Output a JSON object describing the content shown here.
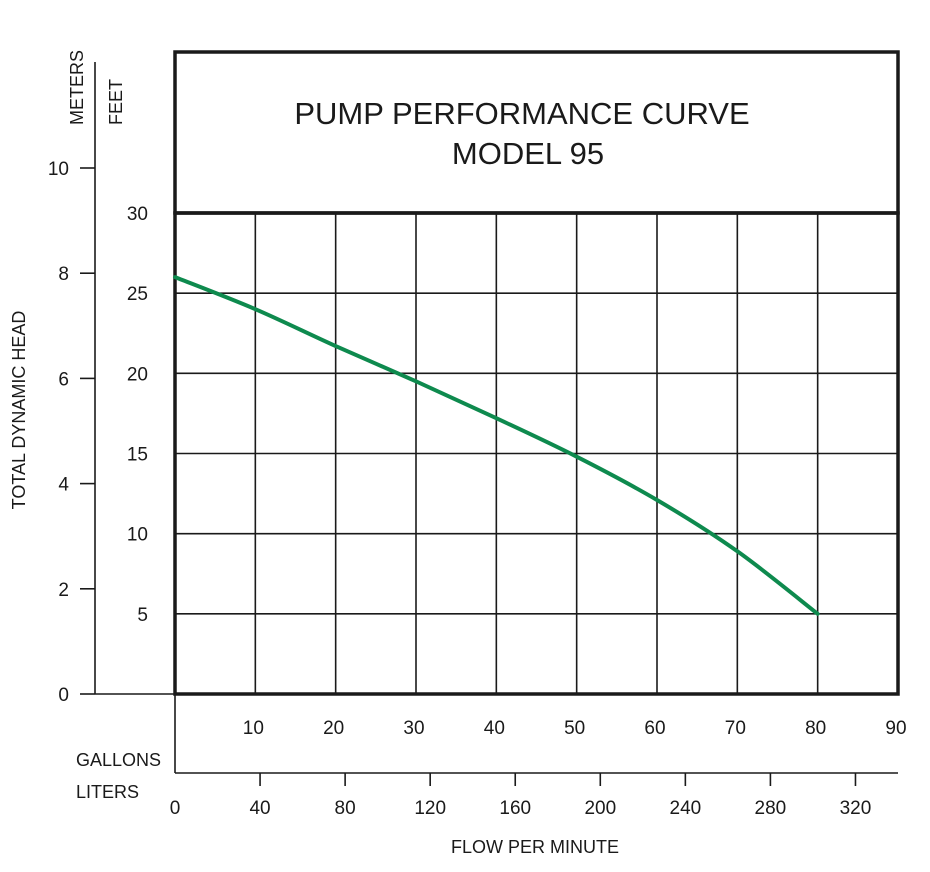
{
  "chart_data": {
    "type": "line",
    "title": "PUMP PERFORMANCE CURVE",
    "subtitle": "MODEL 95",
    "ylabel": "TOTAL DYNAMIC HEAD",
    "xlabel": "FLOW PER MINUTE",
    "y_unit_meters": "METERS",
    "y_unit_feet": "FEET",
    "x_unit_gallons": "GALLONS",
    "x_unit_liters": "LITERS",
    "xlim": [
      0,
      90
    ],
    "ylim": [
      0,
      30
    ],
    "meters_lim": [
      0,
      10
    ],
    "liters_lim": [
      0,
      340
    ],
    "x_ticks_gallons": [
      "10",
      "20",
      "30",
      "40",
      "50",
      "60",
      "70",
      "80",
      "90"
    ],
    "y_ticks_feet": [
      "5",
      "10",
      "15",
      "20",
      "25",
      "30"
    ],
    "y_ticks_meters": [
      "0",
      "2",
      "4",
      "6",
      "8",
      "10"
    ],
    "x_ticks_liters": [
      "0",
      "40",
      "80",
      "120",
      "160",
      "200",
      "240",
      "280",
      "320"
    ],
    "grid": true,
    "series": [
      {
        "color": "#0e8a4e",
        "x": [
          0,
          10,
          20,
          30,
          40,
          50,
          60,
          70,
          80
        ],
        "y": [
          26,
          24,
          21.7,
          19.5,
          17.2,
          14.8,
          12.1,
          8.9,
          5
        ]
      }
    ]
  }
}
